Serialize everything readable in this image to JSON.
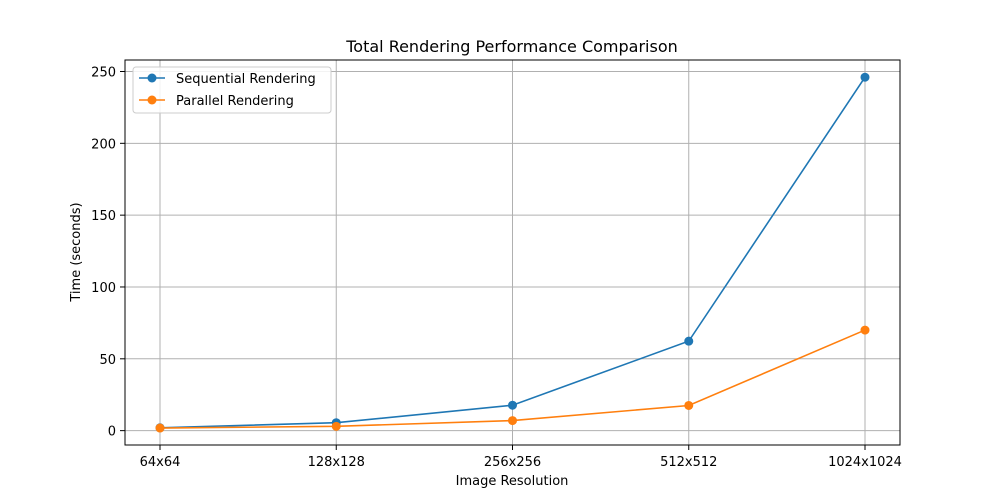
{
  "chart_data": {
    "type": "line",
    "title": "Total Rendering Performance Comparison",
    "xlabel": "Image Resolution",
    "ylabel": "Time (seconds)",
    "categories": [
      "64x64",
      "128x128",
      "256x256",
      "512x512",
      "1024x1024"
    ],
    "ylim": [
      -10,
      258
    ],
    "yticks": [
      0,
      50,
      100,
      150,
      200,
      250
    ],
    "grid": true,
    "legend_position": "top-left",
    "series": [
      {
        "name": "Sequential Rendering",
        "color": "#1f77b4",
        "values": [
          2.0,
          5.5,
          17.7,
          62.3,
          246.0
        ]
      },
      {
        "name": "Parallel Rendering",
        "color": "#ff7f0e",
        "values": [
          1.8,
          3.0,
          7.0,
          17.5,
          70.0
        ]
      }
    ]
  }
}
